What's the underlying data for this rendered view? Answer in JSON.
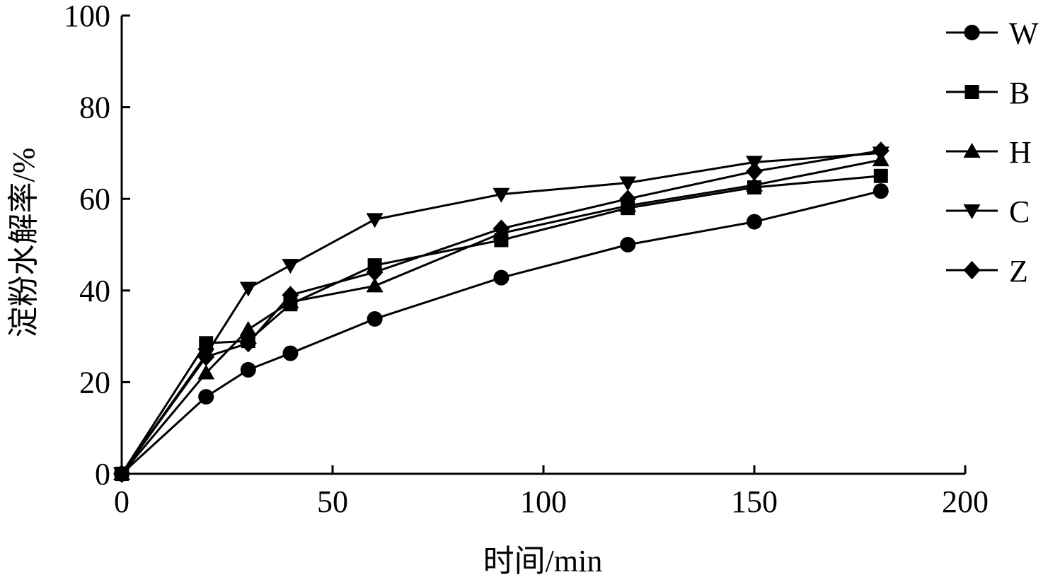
{
  "chart_data": {
    "type": "line",
    "xlabel": "时间/min",
    "ylabel": "淀粉水解率/%",
    "xlim": [
      0,
      200
    ],
    "ylim": [
      0,
      100
    ],
    "xticks": [
      "0",
      "50",
      "100",
      "150",
      "200"
    ],
    "yticks": [
      "0",
      "20",
      "40",
      "60",
      "80",
      "100"
    ],
    "grid": false,
    "legend_position": "top-right",
    "x": [
      0,
      20,
      30,
      40,
      60,
      90,
      120,
      150,
      180
    ],
    "series": [
      {
        "name": "W",
        "marker": "circle",
        "values": [
          0,
          16.8,
          22.7,
          26.3,
          33.8,
          42.8,
          50.0,
          55.0,
          61.7
        ]
      },
      {
        "name": "B",
        "marker": "square",
        "values": [
          0,
          28.5,
          29.0,
          37.0,
          45.5,
          51.0,
          58.0,
          62.5,
          65.0
        ]
      },
      {
        "name": "H",
        "marker": "triangle-up",
        "values": [
          0,
          22.0,
          31.5,
          37.5,
          41.0,
          52.5,
          58.5,
          63.0,
          68.5
        ]
      },
      {
        "name": "C",
        "marker": "triangle-down",
        "values": [
          0,
          26.0,
          40.5,
          45.5,
          55.5,
          61.0,
          63.5,
          68.0,
          70.0
        ]
      },
      {
        "name": "Z",
        "marker": "diamond",
        "values": [
          0,
          25.5,
          28.5,
          39.0,
          44.0,
          53.5,
          60.0,
          66.0,
          70.5
        ]
      }
    ],
    "colors": {
      "line": "#000000",
      "marker": "#000000",
      "axis": "#000000"
    }
  }
}
